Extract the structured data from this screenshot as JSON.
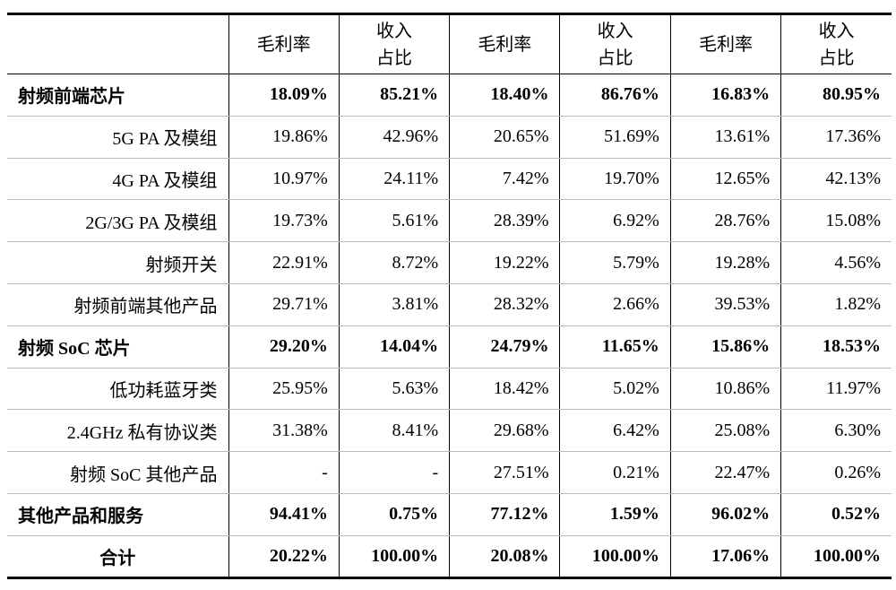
{
  "table": {
    "header": [
      "毛利率",
      "收入\n占比",
      "毛利率",
      "收入\n占比",
      "毛利率",
      "收入\n占比"
    ],
    "rows": [
      {
        "label": "射频前端芯片",
        "bold": true,
        "cells": [
          "18.09%",
          "85.21%",
          "18.40%",
          "86.76%",
          "16.83%",
          "80.95%"
        ]
      },
      {
        "label": "5G PA 及模组",
        "cells": [
          "19.86%",
          "42.96%",
          "20.65%",
          "51.69%",
          "13.61%",
          "17.36%"
        ]
      },
      {
        "label": "4G PA 及模组",
        "cells": [
          "10.97%",
          "24.11%",
          "7.42%",
          "19.70%",
          "12.65%",
          "42.13%"
        ]
      },
      {
        "label": "2G/3G PA 及模组",
        "cells": [
          "19.73%",
          "5.61%",
          "28.39%",
          "6.92%",
          "28.76%",
          "15.08%"
        ]
      },
      {
        "label": "射频开关",
        "cells": [
          "22.91%",
          "8.72%",
          "19.22%",
          "5.79%",
          "19.28%",
          "4.56%"
        ]
      },
      {
        "label": "射频前端其他产品",
        "cells": [
          "29.71%",
          "3.81%",
          "28.32%",
          "2.66%",
          "39.53%",
          "1.82%"
        ]
      },
      {
        "label": "射频 SoC 芯片",
        "bold": true,
        "cells": [
          "29.20%",
          "14.04%",
          "24.79%",
          "11.65%",
          "15.86%",
          "18.53%"
        ]
      },
      {
        "label": "低功耗蓝牙类",
        "cells": [
          "25.95%",
          "5.63%",
          "18.42%",
          "5.02%",
          "10.86%",
          "11.97%"
        ]
      },
      {
        "label": "2.4GHz 私有协议类",
        "cells": [
          "31.38%",
          "8.41%",
          "29.68%",
          "6.42%",
          "25.08%",
          "6.30%"
        ]
      },
      {
        "label": "射频 SoC 其他产品",
        "cells": [
          "-",
          "-",
          "27.51%",
          "0.21%",
          "22.47%",
          "0.26%"
        ]
      },
      {
        "label": "其他产品和服务",
        "bold": true,
        "cells": [
          "94.41%",
          "0.75%",
          "77.12%",
          "1.59%",
          "96.02%",
          "0.52%"
        ]
      },
      {
        "label": "合计",
        "bold": true,
        "cells": [
          "20.22%",
          "100.00%",
          "20.08%",
          "100.00%",
          "17.06%",
          "100.00%"
        ]
      }
    ]
  }
}
